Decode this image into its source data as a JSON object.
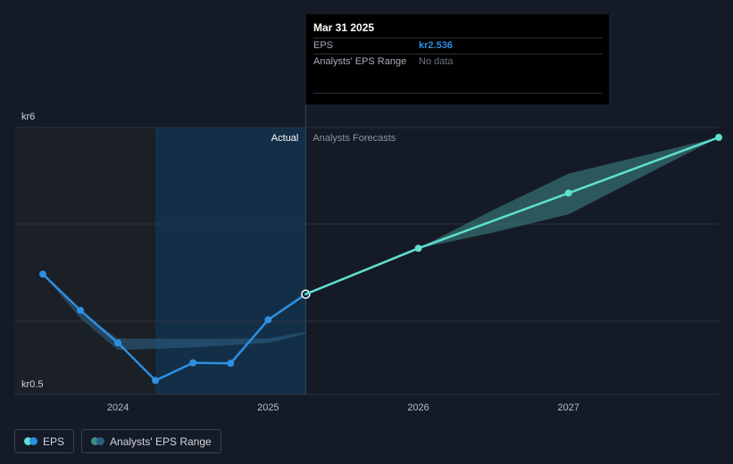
{
  "chart_data": {
    "type": "line",
    "x_ticks": [
      "2024",
      "2025",
      "2026",
      "2027"
    ],
    "y_ticks": [
      "kr6",
      "kr0.5"
    ],
    "region_labels": {
      "actual": "Actual",
      "forecast": "Analysts Forecasts"
    },
    "series": [
      {
        "name": "EPS",
        "kind": "actual",
        "color": "#2e8fe0",
        "points": [
          {
            "x": 2023.5,
            "y": 2.98
          },
          {
            "x": 2023.75,
            "y": 2.18
          },
          {
            "x": 2024.0,
            "y": 1.46
          },
          {
            "x": 2024.25,
            "y": 0.63
          },
          {
            "x": 2024.5,
            "y": 1.02
          },
          {
            "x": 2024.75,
            "y": 1.01
          },
          {
            "x": 2025.0,
            "y": 1.97
          },
          {
            "x": 2025.25,
            "y": 2.536
          }
        ]
      },
      {
        "name": "EPS",
        "kind": "forecast",
        "color": "#5fe0d0",
        "points": [
          {
            "x": 2025.25,
            "y": 2.536
          },
          {
            "x": 2026.0,
            "y": 3.55
          },
          {
            "x": 2027.0,
            "y": 4.77
          },
          {
            "x": 2028.0,
            "y": 6.0
          }
        ]
      }
    ],
    "range": {
      "name": "Analysts' EPS Range",
      "actual": {
        "x": [
          2023.5,
          2023.75,
          2024.0,
          2024.5,
          2025.0,
          2025.25
        ],
        "high": [
          2.98,
          2.13,
          1.56,
          1.55,
          1.56,
          1.7
        ],
        "low": [
          2.98,
          2.0,
          1.3,
          1.36,
          1.46,
          1.66
        ]
      },
      "forecast": {
        "x": [
          2025.25,
          2026.0,
          2026.5,
          2027.0,
          2028.0
        ],
        "high": [
          2.536,
          3.55,
          4.4,
          5.2,
          6.0
        ],
        "low": [
          2.536,
          3.55,
          3.9,
          4.3,
          6.0
        ]
      }
    },
    "ylim": [
      0.5,
      6.0
    ],
    "grid": true,
    "legend_position": "bottom-left"
  },
  "tooltip": {
    "date": "Mar 31 2025",
    "rows": [
      {
        "label": "EPS",
        "value": "kr2.536"
      },
      {
        "label": "Analysts' EPS Range",
        "value": "No data"
      }
    ]
  },
  "legend": [
    {
      "label": "EPS",
      "colors": [
        "#5fe0d0",
        "#2e8fe0"
      ]
    },
    {
      "label": "Analysts' EPS Range",
      "colors": [
        "#3f8a8a",
        "#2d5f80"
      ]
    }
  ],
  "colors": {
    "background": "#151b26",
    "actual_shade": "#13324d",
    "past_shade": "#1b1f26",
    "grid": "#2c3340"
  }
}
